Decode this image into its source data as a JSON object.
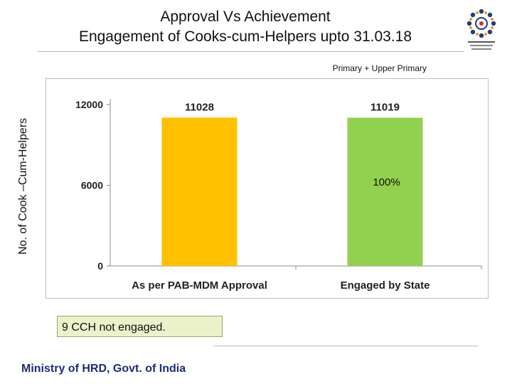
{
  "header": {
    "title_line1": "Approval Vs Achievement",
    "title_line2": "Engagement  of Cooks-cum-Helpers  upto 31.03.18"
  },
  "logo": {
    "icon": "mdm-logo-icon"
  },
  "chart_data": {
    "type": "bar",
    "subtitle": "Primary + Upper Primary",
    "ylabel": "No. of  Cook –Cum-Helpers",
    "xlabel": "",
    "categories": [
      "As per PAB-MDM Approval",
      "Engaged by State"
    ],
    "values": [
      11028,
      11019
    ],
    "data_labels": [
      "11028",
      "11019"
    ],
    "bar_colors": [
      "#ffc000",
      "#92d050"
    ],
    "ylim": [
      0,
      12000
    ],
    "yticks": [
      0,
      6000,
      12000
    ],
    "ytick_labels": [
      "0",
      "6000",
      "12000"
    ],
    "annotation": "100%",
    "grid": false,
    "legend": "none"
  },
  "note": {
    "text": "9 CCH not engaged."
  },
  "footer": {
    "text": "Ministry of HRD, Govt. of India"
  }
}
